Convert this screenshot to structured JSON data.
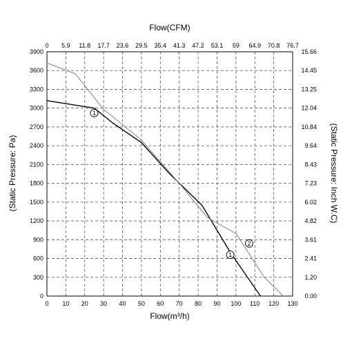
{
  "chart_data": {
    "type": "line",
    "x_bottom": {
      "label": "Flow(m³/h)",
      "range": [
        0,
        130
      ],
      "ticks": [
        0,
        10,
        20,
        30,
        40,
        50,
        60,
        70,
        80,
        90,
        100,
        110,
        120,
        130
      ]
    },
    "x_top": {
      "label": "Flow(CFM)",
      "ticks": [
        "0",
        "5.9",
        "11.8",
        "17.7",
        "23.6",
        "29.5",
        "35.4",
        "41.3",
        "47.2",
        "53.1",
        "59",
        "64.9",
        "70.8",
        "76.7"
      ]
    },
    "y_left": {
      "label": "(Static Pressure: Pa)",
      "range": [
        0,
        3900
      ],
      "ticks": [
        0,
        300,
        600,
        900,
        1200,
        1500,
        1800,
        2100,
        2400,
        2700,
        3000,
        3300,
        3600,
        3900
      ]
    },
    "y_right": {
      "label": "(Static Pressure: Inch W.C)",
      "ticks": [
        "0.00",
        "1.20",
        "2.41",
        "3.61",
        "4.82",
        "6.02",
        "7.23",
        "8.43",
        "9.64",
        "10.84",
        "12.04",
        "13.25",
        "14.45",
        "15.66"
      ]
    },
    "grid": true,
    "series": [
      {
        "name": "1",
        "color": "#000000",
        "points": [
          [
            0,
            3120
          ],
          [
            25,
            3000
          ],
          [
            35,
            2760
          ],
          [
            50,
            2450
          ],
          [
            65,
            1950
          ],
          [
            82,
            1450
          ],
          [
            97,
            700
          ],
          [
            113,
            0
          ]
        ]
      },
      {
        "name": "2",
        "color": "#8c8c8c",
        "points": [
          [
            0,
            3720
          ],
          [
            15,
            3550
          ],
          [
            30,
            2980
          ],
          [
            50,
            2490
          ],
          [
            70,
            1800
          ],
          [
            85,
            1250
          ],
          [
            100,
            1000
          ],
          [
            115,
            300
          ],
          [
            125,
            0
          ]
        ]
      }
    ],
    "markers": [
      {
        "series": "1",
        "label": "1",
        "x": 25,
        "y": 2920
      },
      {
        "series": "1",
        "label": "1",
        "x": 97,
        "y": 660
      },
      {
        "series": "2",
        "label": "2",
        "x": 107,
        "y": 840
      }
    ]
  }
}
